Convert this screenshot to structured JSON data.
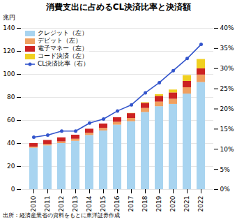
{
  "chart_data": {
    "type": "bar",
    "title": "消費支出に占めるCL決済比率と決済額",
    "ylabel": "兆円",
    "source": "出所：経済産業省の資料をもとに東洋証券作成",
    "categories": [
      2010,
      2011,
      2012,
      2013,
      2014,
      2015,
      2016,
      2017,
      2018,
      2019,
      2020,
      2021,
      2022
    ],
    "stacked": true,
    "series": [
      {
        "name": "クレジット（左）",
        "color": "#a8d4f0",
        "values": [
          36,
          38,
          40,
          42,
          47,
          51,
          56,
          59,
          67,
          72,
          74,
          83,
          93
        ]
      },
      {
        "name": "デビット（左）",
        "color": "#f0a060",
        "values": [
          1.0,
          1.2,
          1.5,
          1.8,
          2.0,
          2.2,
          2.5,
          2.8,
          3.5,
          4.0,
          4.5,
          5.5,
          6.5
        ]
      },
      {
        "name": "電子マネー（左）",
        "color": "#cc2222",
        "values": [
          3.0,
          3.5,
          3.5,
          3.5,
          3.5,
          3.8,
          4.0,
          4.2,
          4.5,
          5.0,
          5.5,
          5.5,
          5.5
        ]
      },
      {
        "name": "コード決済（左）",
        "color": "#f0d020",
        "values": [
          0.0,
          0.0,
          0.0,
          0.0,
          0.0,
          0.0,
          0.0,
          0.2,
          0.5,
          1.5,
          2.5,
          5.0,
          8.0
        ]
      },
      {
        "name": "CL決済比率（右）",
        "type": "line",
        "axis": "y2",
        "color": "#3355cc",
        "marker": "circle",
        "values": [
          13.0,
          13.5,
          14.5,
          14.5,
          16.5,
          17.5,
          19.5,
          21.0,
          24.0,
          26.5,
          29.5,
          32.5,
          36.0
        ]
      }
    ],
    "ylim": [
      0,
      140
    ],
    "yticks": [
      0,
      20,
      40,
      60,
      80,
      100,
      120,
      140
    ],
    "y2lim": [
      0,
      40
    ],
    "y2ticks": [
      {
        "value": 0,
        "label": "0%"
      },
      {
        "value": 5,
        "label": "5%"
      },
      {
        "value": 10,
        "label": "10%"
      },
      {
        "value": 15,
        "label": "15%"
      },
      {
        "value": 20,
        "label": "20%"
      },
      {
        "value": 25,
        "label": "25%"
      },
      {
        "value": 30,
        "label": "30%"
      },
      {
        "value": 35,
        "label": "35%"
      },
      {
        "value": 40,
        "label": "40%"
      }
    ],
    "grid": true,
    "legend": "upper left"
  }
}
